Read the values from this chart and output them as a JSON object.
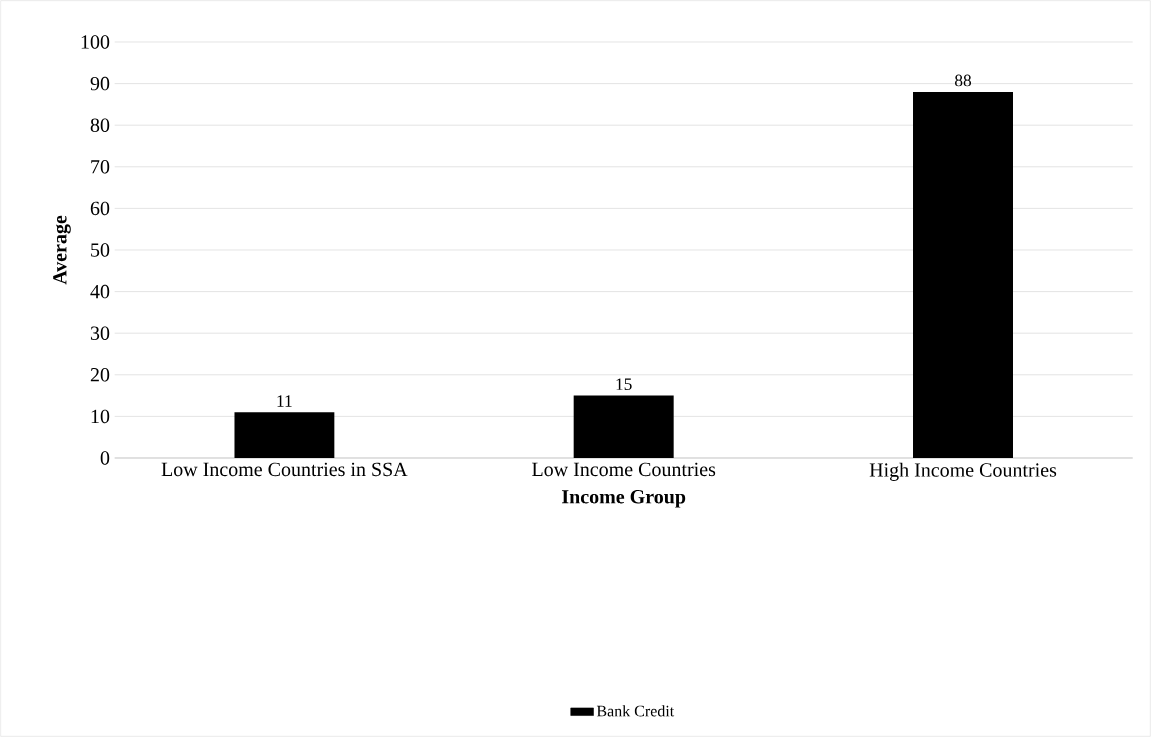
{
  "chart_data": {
    "type": "bar",
    "xlabel": "Income Group",
    "ylabel": "Average",
    "categories": [
      "Low Income Countries in SSA",
      "Low Income Countries",
      "High Income Countries"
    ],
    "series": [
      {
        "name": "Bank Credit",
        "color": "#000000",
        "values": [
          11,
          15,
          88
        ]
      }
    ],
    "ylim": [
      0,
      100
    ],
    "yticks": [
      0,
      10,
      20,
      30,
      40,
      50,
      60,
      70,
      80,
      90,
      100
    ],
    "grid": "y",
    "legend": "bottom",
    "data_labels": true
  }
}
